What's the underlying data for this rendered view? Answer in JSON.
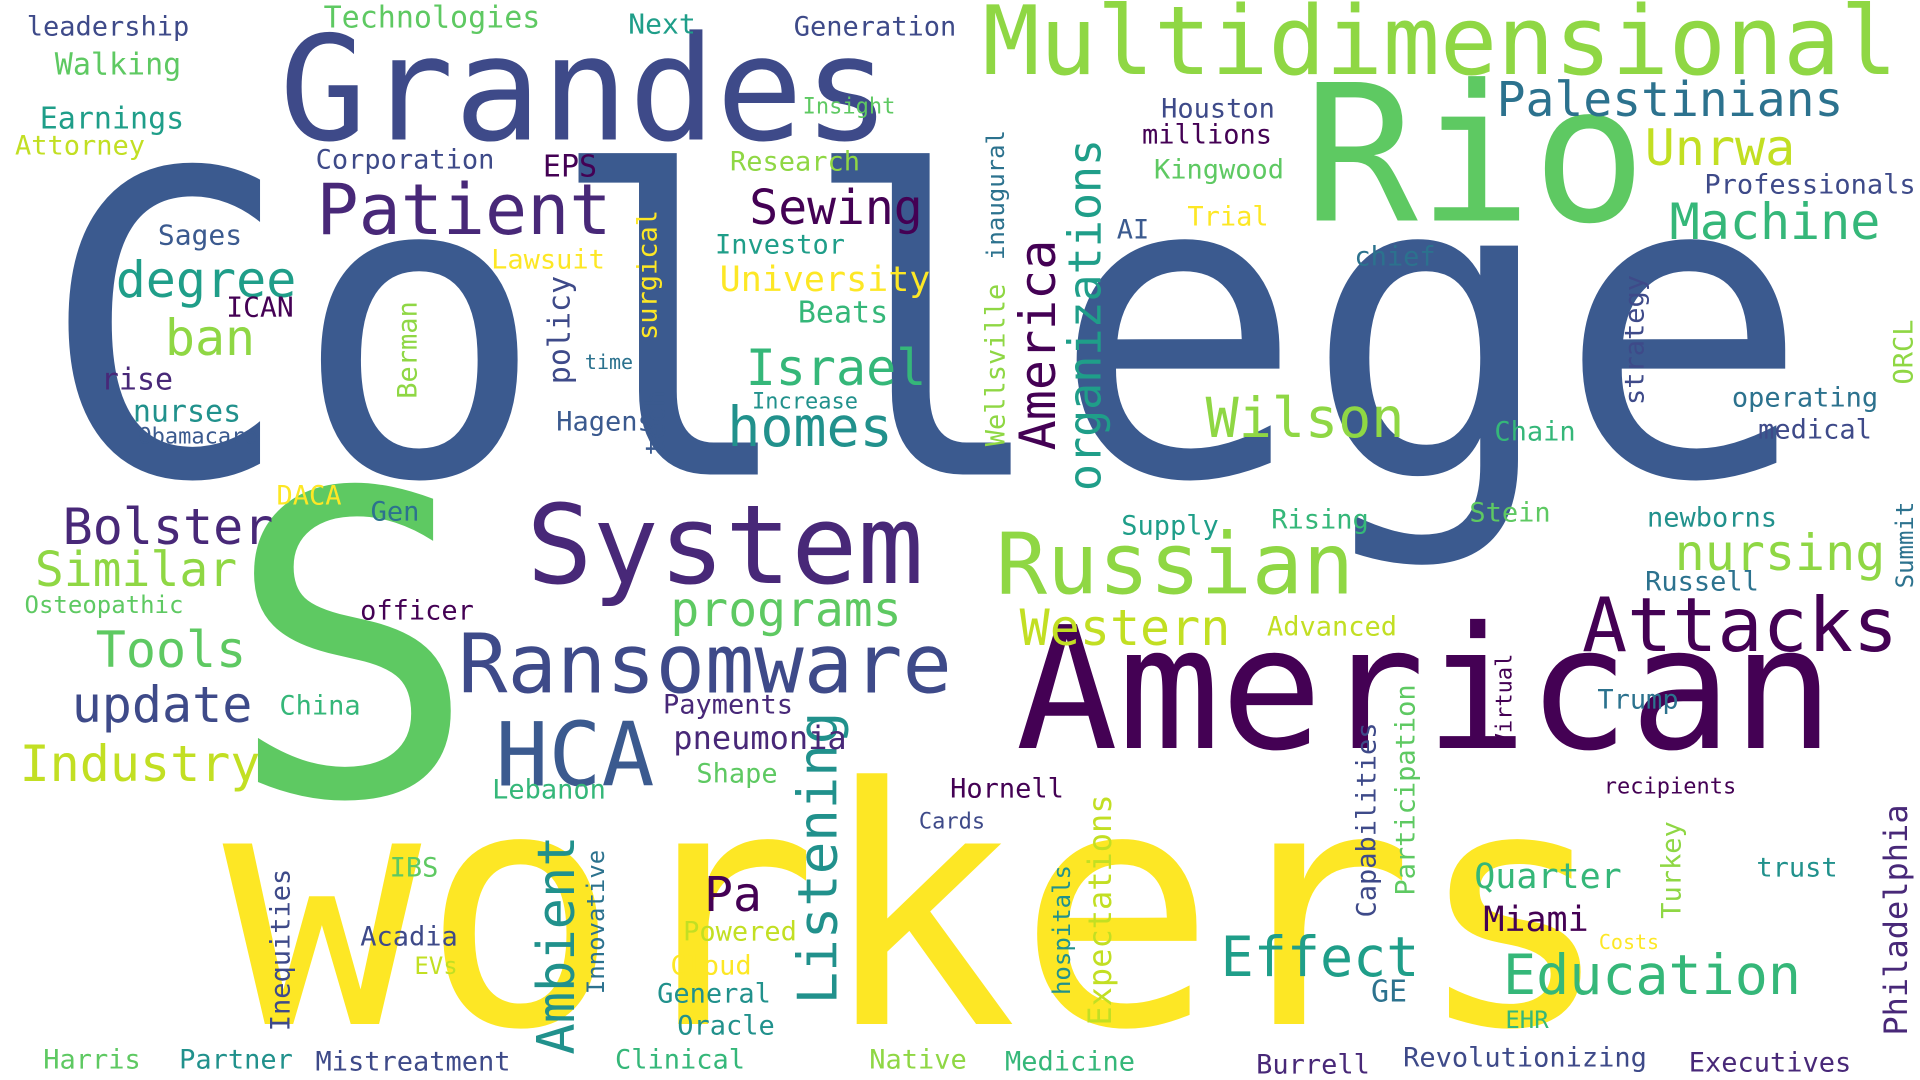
{
  "words": [
    {
      "text": "College",
      "color": "#3b5a8f"
    },
    {
      "text": "workers",
      "color": "#fde725"
    },
    {
      "text": "S",
      "color": "#5ec962"
    },
    {
      "text": "American",
      "color": "#440154"
    },
    {
      "text": "Rio",
      "color": "#5ec962"
    },
    {
      "text": "Grandes",
      "color": "#3e4a89"
    },
    {
      "text": "Multidimensional",
      "color": "#8fd744"
    },
    {
      "text": "System",
      "color": "#482878"
    },
    {
      "text": "Russian",
      "color": "#8fd744"
    },
    {
      "text": "Ransomware",
      "color": "#3e4a89"
    },
    {
      "text": "HCA",
      "color": "#3b5a8f"
    },
    {
      "text": "Attacks",
      "color": "#440154"
    },
    {
      "text": "Patient",
      "color": "#482878"
    },
    {
      "text": "Palestinians",
      "color": "#2c728e"
    },
    {
      "text": "Machine",
      "color": "#35b779"
    },
    {
      "text": "Unrwa",
      "color": "#c2df23"
    },
    {
      "text": "Education",
      "color": "#35b779"
    },
    {
      "text": "Effect",
      "color": "#1f9e89"
    },
    {
      "text": "Listening",
      "color": "#21918c"
    },
    {
      "text": "Ambient",
      "color": "#21918c"
    },
    {
      "text": "Wilson",
      "color": "#8fd744"
    },
    {
      "text": "nursing",
      "color": "#8fd744"
    },
    {
      "text": "Western",
      "color": "#c2df23"
    },
    {
      "text": "Israel",
      "color": "#35b779"
    },
    {
      "text": "homes",
      "color": "#21918c"
    },
    {
      "text": "programs",
      "color": "#5ec962"
    },
    {
      "text": "Sewing",
      "color": "#440154"
    },
    {
      "text": "degree",
      "color": "#1f9e89"
    },
    {
      "text": "Bolster",
      "color": "#482878"
    },
    {
      "text": "Similar",
      "color": "#8fd744"
    },
    {
      "text": "Tools",
      "color": "#5ec962"
    },
    {
      "text": "update",
      "color": "#3e4a89"
    },
    {
      "text": "Industry",
      "color": "#c2df23"
    },
    {
      "text": "ban",
      "color": "#8fd744"
    },
    {
      "text": "Pa",
      "color": "#440154"
    },
    {
      "text": "America",
      "color": "#440154"
    },
    {
      "text": "organizations",
      "color": "#1f9e89"
    },
    {
      "text": "pneumonia",
      "color": "#482878"
    },
    {
      "text": "Quarter",
      "color": "#35b779"
    },
    {
      "text": "Miami",
      "color": "#440154"
    },
    {
      "text": "Philadelphia",
      "color": "#482878"
    },
    {
      "text": "Expectations",
      "color": "#c2df23"
    },
    {
      "text": "University",
      "color": "#fde725"
    },
    {
      "text": "Technologies",
      "color": "#5ec962"
    },
    {
      "text": "Walking",
      "color": "#5ec962"
    },
    {
      "text": "Earnings",
      "color": "#1f9e89"
    },
    {
      "text": "leadership",
      "color": "#3e4a89"
    },
    {
      "text": "Attorney",
      "color": "#c2df23"
    },
    {
      "text": "Next",
      "color": "#1f9e89"
    },
    {
      "text": "Generation",
      "color": "#3e4a89"
    },
    {
      "text": "Houston",
      "color": "#3e4a89"
    },
    {
      "text": "millions",
      "color": "#440154"
    },
    {
      "text": "Kingwood",
      "color": "#5ec962"
    },
    {
      "text": "Professionals",
      "color": "#3e4a89"
    },
    {
      "text": "Corporation",
      "color": "#3e4a89"
    },
    {
      "text": "EPS",
      "color": "#440154"
    },
    {
      "text": "Research",
      "color": "#8fd744"
    },
    {
      "text": "Insight",
      "color": "#5ec962"
    },
    {
      "text": "Sages",
      "color": "#3b5a8f"
    },
    {
      "text": "Lawsuit",
      "color": "#fde725"
    },
    {
      "text": "Investor",
      "color": "#1f9e89"
    },
    {
      "text": "Beats",
      "color": "#35b779"
    },
    {
      "text": "ICAN",
      "color": "#440154"
    },
    {
      "text": "rise",
      "color": "#482878"
    },
    {
      "text": "nurses",
      "color": "#21918c"
    },
    {
      "text": "Obamacare",
      "color": "#3b5a8f"
    },
    {
      "text": "Berman",
      "color": "#8fd744"
    },
    {
      "text": "surgical",
      "color": "#fde725"
    },
    {
      "text": "policy",
      "color": "#3e4a89"
    },
    {
      "text": "time",
      "color": "#2c728e"
    },
    {
      "text": "tech",
      "color": "#3b5a8f"
    },
    {
      "text": "Hagens",
      "color": "#3b5a8f"
    },
    {
      "text": "Increase",
      "color": "#21918c"
    },
    {
      "text": "Trial",
      "color": "#fde725"
    },
    {
      "text": "AI",
      "color": "#3b5a8f"
    },
    {
      "text": "chief",
      "color": "#2c728e"
    },
    {
      "text": "strategy",
      "color": "#3e4a89"
    },
    {
      "text": "ORCL",
      "color": "#8fd744"
    },
    {
      "text": "operating",
      "color": "#2c728e"
    },
    {
      "text": "medical",
      "color": "#3e4a89"
    },
    {
      "text": "Chain",
      "color": "#35b779"
    },
    {
      "text": "inaugural",
      "color": "#2c728e"
    },
    {
      "text": "Wellsville",
      "color": "#8fd744"
    },
    {
      "text": "DACA",
      "color": "#fde725"
    },
    {
      "text": "Gen",
      "color": "#2c728e"
    },
    {
      "text": "Osteopathic",
      "color": "#5ec962"
    },
    {
      "text": "officer",
      "color": "#440154"
    },
    {
      "text": "Supply",
      "color": "#1f9e89"
    },
    {
      "text": "Rising",
      "color": "#35b779"
    },
    {
      "text": "Stein",
      "color": "#5ec962"
    },
    {
      "text": "newborns",
      "color": "#21918c"
    },
    {
      "text": "Summit",
      "color": "#2c728e"
    },
    {
      "text": "Russell",
      "color": "#2c728e"
    },
    {
      "text": "Advanced",
      "color": "#c2df23"
    },
    {
      "text": "China",
      "color": "#35b779"
    },
    {
      "text": "Payments",
      "color": "#482878"
    },
    {
      "text": "Shape",
      "color": "#5ec962"
    },
    {
      "text": "Trump",
      "color": "#2c728e"
    },
    {
      "text": "Virtual",
      "color": "#440154"
    },
    {
      "text": "Participation",
      "color": "#5ec962"
    },
    {
      "text": "Capabilities",
      "color": "#3e4a89"
    },
    {
      "text": "Lebanon",
      "color": "#35b779"
    },
    {
      "text": "Hornell",
      "color": "#440154"
    },
    {
      "text": "Cards",
      "color": "#3e4a89"
    },
    {
      "text": "recipients",
      "color": "#440154"
    },
    {
      "text": "Turkey",
      "color": "#8fd744"
    },
    {
      "text": "trust",
      "color": "#21918c"
    },
    {
      "text": "IBS",
      "color": "#5ec962"
    },
    {
      "text": "Inequities",
      "color": "#3e4a89"
    },
    {
      "text": "Innovative",
      "color": "#2c728e"
    },
    {
      "text": "Acadia",
      "color": "#3e4a89"
    },
    {
      "text": "EVs",
      "color": "#c2df23"
    },
    {
      "text": "Powered",
      "color": "#c2df23"
    },
    {
      "text": "Cloud",
      "color": "#fde725"
    },
    {
      "text": "General",
      "color": "#21918c"
    },
    {
      "text": "Oracle",
      "color": "#21918c"
    },
    {
      "text": "hospitals",
      "color": "#21918c"
    },
    {
      "text": "Costs",
      "color": "#fde725"
    },
    {
      "text": "GE",
      "color": "#2c728e"
    },
    {
      "text": "EHR",
      "color": "#35b779"
    },
    {
      "text": "Harris",
      "color": "#5ec962"
    },
    {
      "text": "Partner",
      "color": "#21918c"
    },
    {
      "text": "Mistreatment",
      "color": "#3e4a89"
    },
    {
      "text": "Clinical",
      "color": "#35b779"
    },
    {
      "text": "Native",
      "color": "#8fd744"
    },
    {
      "text": "Medicine",
      "color": "#35b779"
    },
    {
      "text": "Burrell",
      "color": "#482878"
    },
    {
      "text": "Revolutionizing",
      "color": "#3e4a89"
    },
    {
      "text": "Executives",
      "color": "#482878"
    }
  ]
}
